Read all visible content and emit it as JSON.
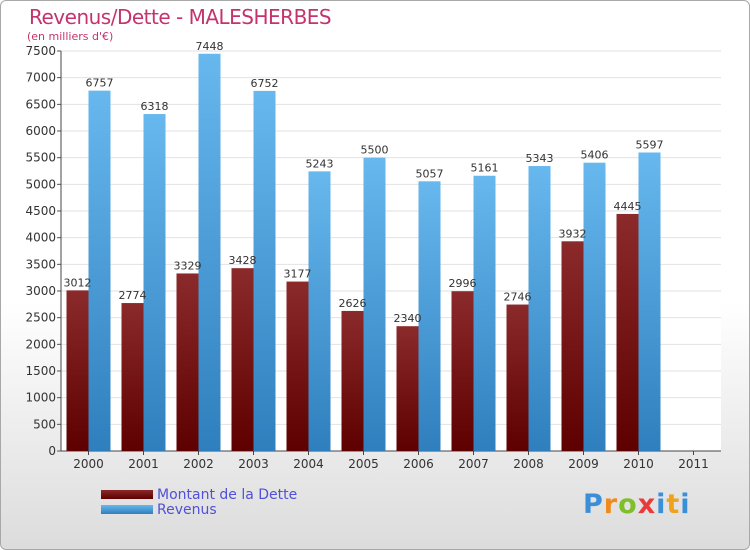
{
  "title": "Revenus/Dette - MALESHERBES",
  "subtitle": "(en milliers d'€)",
  "colors": {
    "dette_dark": "#5e0000",
    "dette_light": "#8b2a2a",
    "revenus_dark": "#2f7fbe",
    "revenus_light": "#67b8ee",
    "title": "#c4336d",
    "legend_text": "#5050d8"
  },
  "legend": {
    "dette": "Montant de la Dette",
    "revenus": "Revenus"
  },
  "logo": {
    "letters": [
      "P",
      "r",
      "o",
      "x",
      "i",
      "t",
      "i"
    ],
    "colors": [
      "#3a8fd8",
      "#f08a1c",
      "#7fbf2a",
      "#e83a3a",
      "#3a8fd8",
      "#f0a21c",
      "#3a8fd8"
    ]
  },
  "chart_data": {
    "type": "bar",
    "categories": [
      "2000",
      "2001",
      "2002",
      "2003",
      "2004",
      "2005",
      "2006",
      "2007",
      "2008",
      "2009",
      "2010",
      "2011"
    ],
    "series": [
      {
        "name": "Montant de la Dette",
        "values": [
          3012,
          2774,
          3329,
          3428,
          3177,
          2626,
          2340,
          2996,
          2746,
          3932,
          4445,
          null
        ]
      },
      {
        "name": "Revenus",
        "values": [
          6757,
          6318,
          7448,
          6752,
          5243,
          5500,
          5057,
          5161,
          5343,
          5406,
          5597,
          null
        ]
      }
    ],
    "ylim": [
      0,
      7500
    ],
    "yticks": [
      0,
      500,
      1000,
      1500,
      2000,
      2500,
      3000,
      3500,
      4000,
      4500,
      5000,
      5500,
      6000,
      6500,
      7000,
      7500
    ],
    "grid": true,
    "legend_position": "bottom-left"
  }
}
